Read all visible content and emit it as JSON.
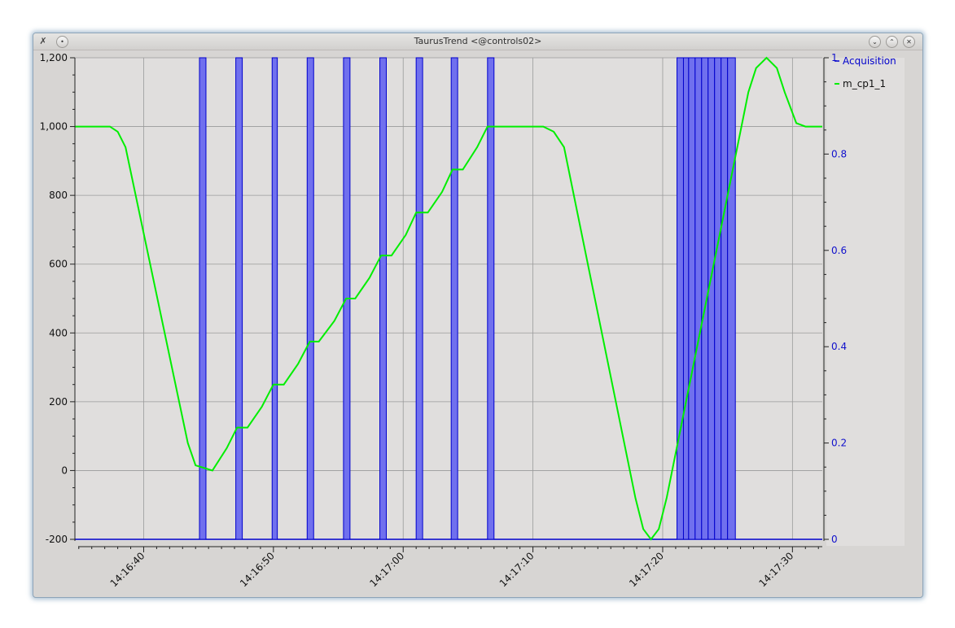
{
  "window": {
    "title": "TaurusTrend <@controls02>",
    "icons": {
      "app": "taurus-app-icon",
      "menu": "window-menu-icon",
      "minimize": "minimize-icon",
      "maximize": "maximize-icon",
      "close": "close-icon"
    }
  },
  "colors": {
    "window_bg": "#d7d5d3",
    "plot_bg": "#e0dedd",
    "grid": "#9a9a9a",
    "acquisition": "#0000cc",
    "acquisition_fill": "#7070ee",
    "m_cp1_1": "#00ee00",
    "right_axis": "#1010cc"
  },
  "chart_data": {
    "type": "line",
    "title": "",
    "xlabel": "",
    "ylabel": "",
    "y2label": "",
    "x_range": [
      "14:16:34.7",
      "14:17:32.3"
    ],
    "x_ticks": [
      "14:16:40",
      "14:16:50",
      "14:17:00",
      "14:17:10",
      "14:17:20",
      "14:17:30"
    ],
    "ylim": [
      -200,
      1200
    ],
    "y_ticks": [
      "-200",
      "0",
      "200",
      "400",
      "600",
      "800",
      "1,000",
      "1,200"
    ],
    "y2lim": [
      0,
      1
    ],
    "y2_ticks": [
      "0",
      "0.2",
      "0.4",
      "0.6",
      "0.8",
      "1"
    ],
    "grid": true,
    "legend_position": "right",
    "series": [
      {
        "name": "Acquisition",
        "axis": "right",
        "style": "bars",
        "pulses": [
          [
            "14:16:44.3",
            "14:16:44.8"
          ],
          [
            "14:16:47.1",
            "14:16:47.6"
          ],
          [
            "14:16:49.9",
            "14:16:50.3"
          ],
          [
            "14:16:52.6",
            "14:16:53.1"
          ],
          [
            "14:16:55.4",
            "14:16:55.9"
          ],
          [
            "14:16:58.2",
            "14:16:58.7"
          ],
          [
            "14:17:01.0",
            "14:17:01.5"
          ],
          [
            "14:17:03.7",
            "14:17:04.2"
          ],
          [
            "14:17:06.5",
            "14:17:07.0"
          ],
          [
            "14:17:21.1",
            "14:17:21.6"
          ],
          [
            "14:17:21.6",
            "14:17:22.0"
          ],
          [
            "14:17:22.0",
            "14:17:22.5"
          ],
          [
            "14:17:22.5",
            "14:17:23.0"
          ],
          [
            "14:17:23.0",
            "14:17:23.5"
          ],
          [
            "14:17:23.5",
            "14:17:24.0"
          ],
          [
            "14:17:24.0",
            "14:17:24.5"
          ],
          [
            "14:17:24.5",
            "14:17:25.0"
          ],
          [
            "14:17:25.0",
            "14:17:25.6"
          ]
        ]
      },
      {
        "name": "m_cp1_1",
        "axis": "left",
        "style": "line",
        "x": [
          "14:16:34.7",
          "14:16:37.4",
          "14:16:38.0",
          "14:16:38.6",
          "14:16:43.4",
          "14:16:44.0",
          "14:16:45.3",
          "14:16:46.4",
          "14:16:47.2",
          "14:16:48.0",
          "14:16:49.1",
          "14:16:50.0",
          "14:16:50.8",
          "14:16:51.9",
          "14:16:52.8",
          "14:16:53.5",
          "14:16:54.7",
          "14:16:55.6",
          "14:16:56.3",
          "14:16:57.4",
          "14:16:58.3",
          "14:16:59.1",
          "14:17:00.2",
          "14:17:01.0",
          "14:17:01.9",
          "14:17:03.0",
          "14:17:03.8",
          "14:17:04.6",
          "14:17:05.7",
          "14:17:06.5",
          "14:17:10.8",
          "14:17:11.6",
          "14:17:12.4",
          "14:17:17.9",
          "14:17:18.5",
          "14:17:19.1",
          "14:17:19.7",
          "14:17:20.3",
          "14:17:26.6",
          "14:17:27.2",
          "14:17:28.0",
          "14:17:28.8",
          "14:17:29.4",
          "14:17:30.3",
          "14:17:31.0",
          "14:17:32.3"
        ],
        "y": [
          1000,
          1000,
          985,
          940,
          80,
          15,
          0,
          65,
          125,
          125,
          185,
          250,
          250,
          310,
          375,
          375,
          435,
          500,
          500,
          560,
          625,
          625,
          685,
          750,
          750,
          810,
          875,
          875,
          940,
          1000,
          1000,
          985,
          940,
          -80,
          -170,
          -200,
          -170,
          -80,
          1100,
          1170,
          1200,
          1170,
          1100,
          1010,
          1000,
          1000
        ]
      }
    ]
  }
}
